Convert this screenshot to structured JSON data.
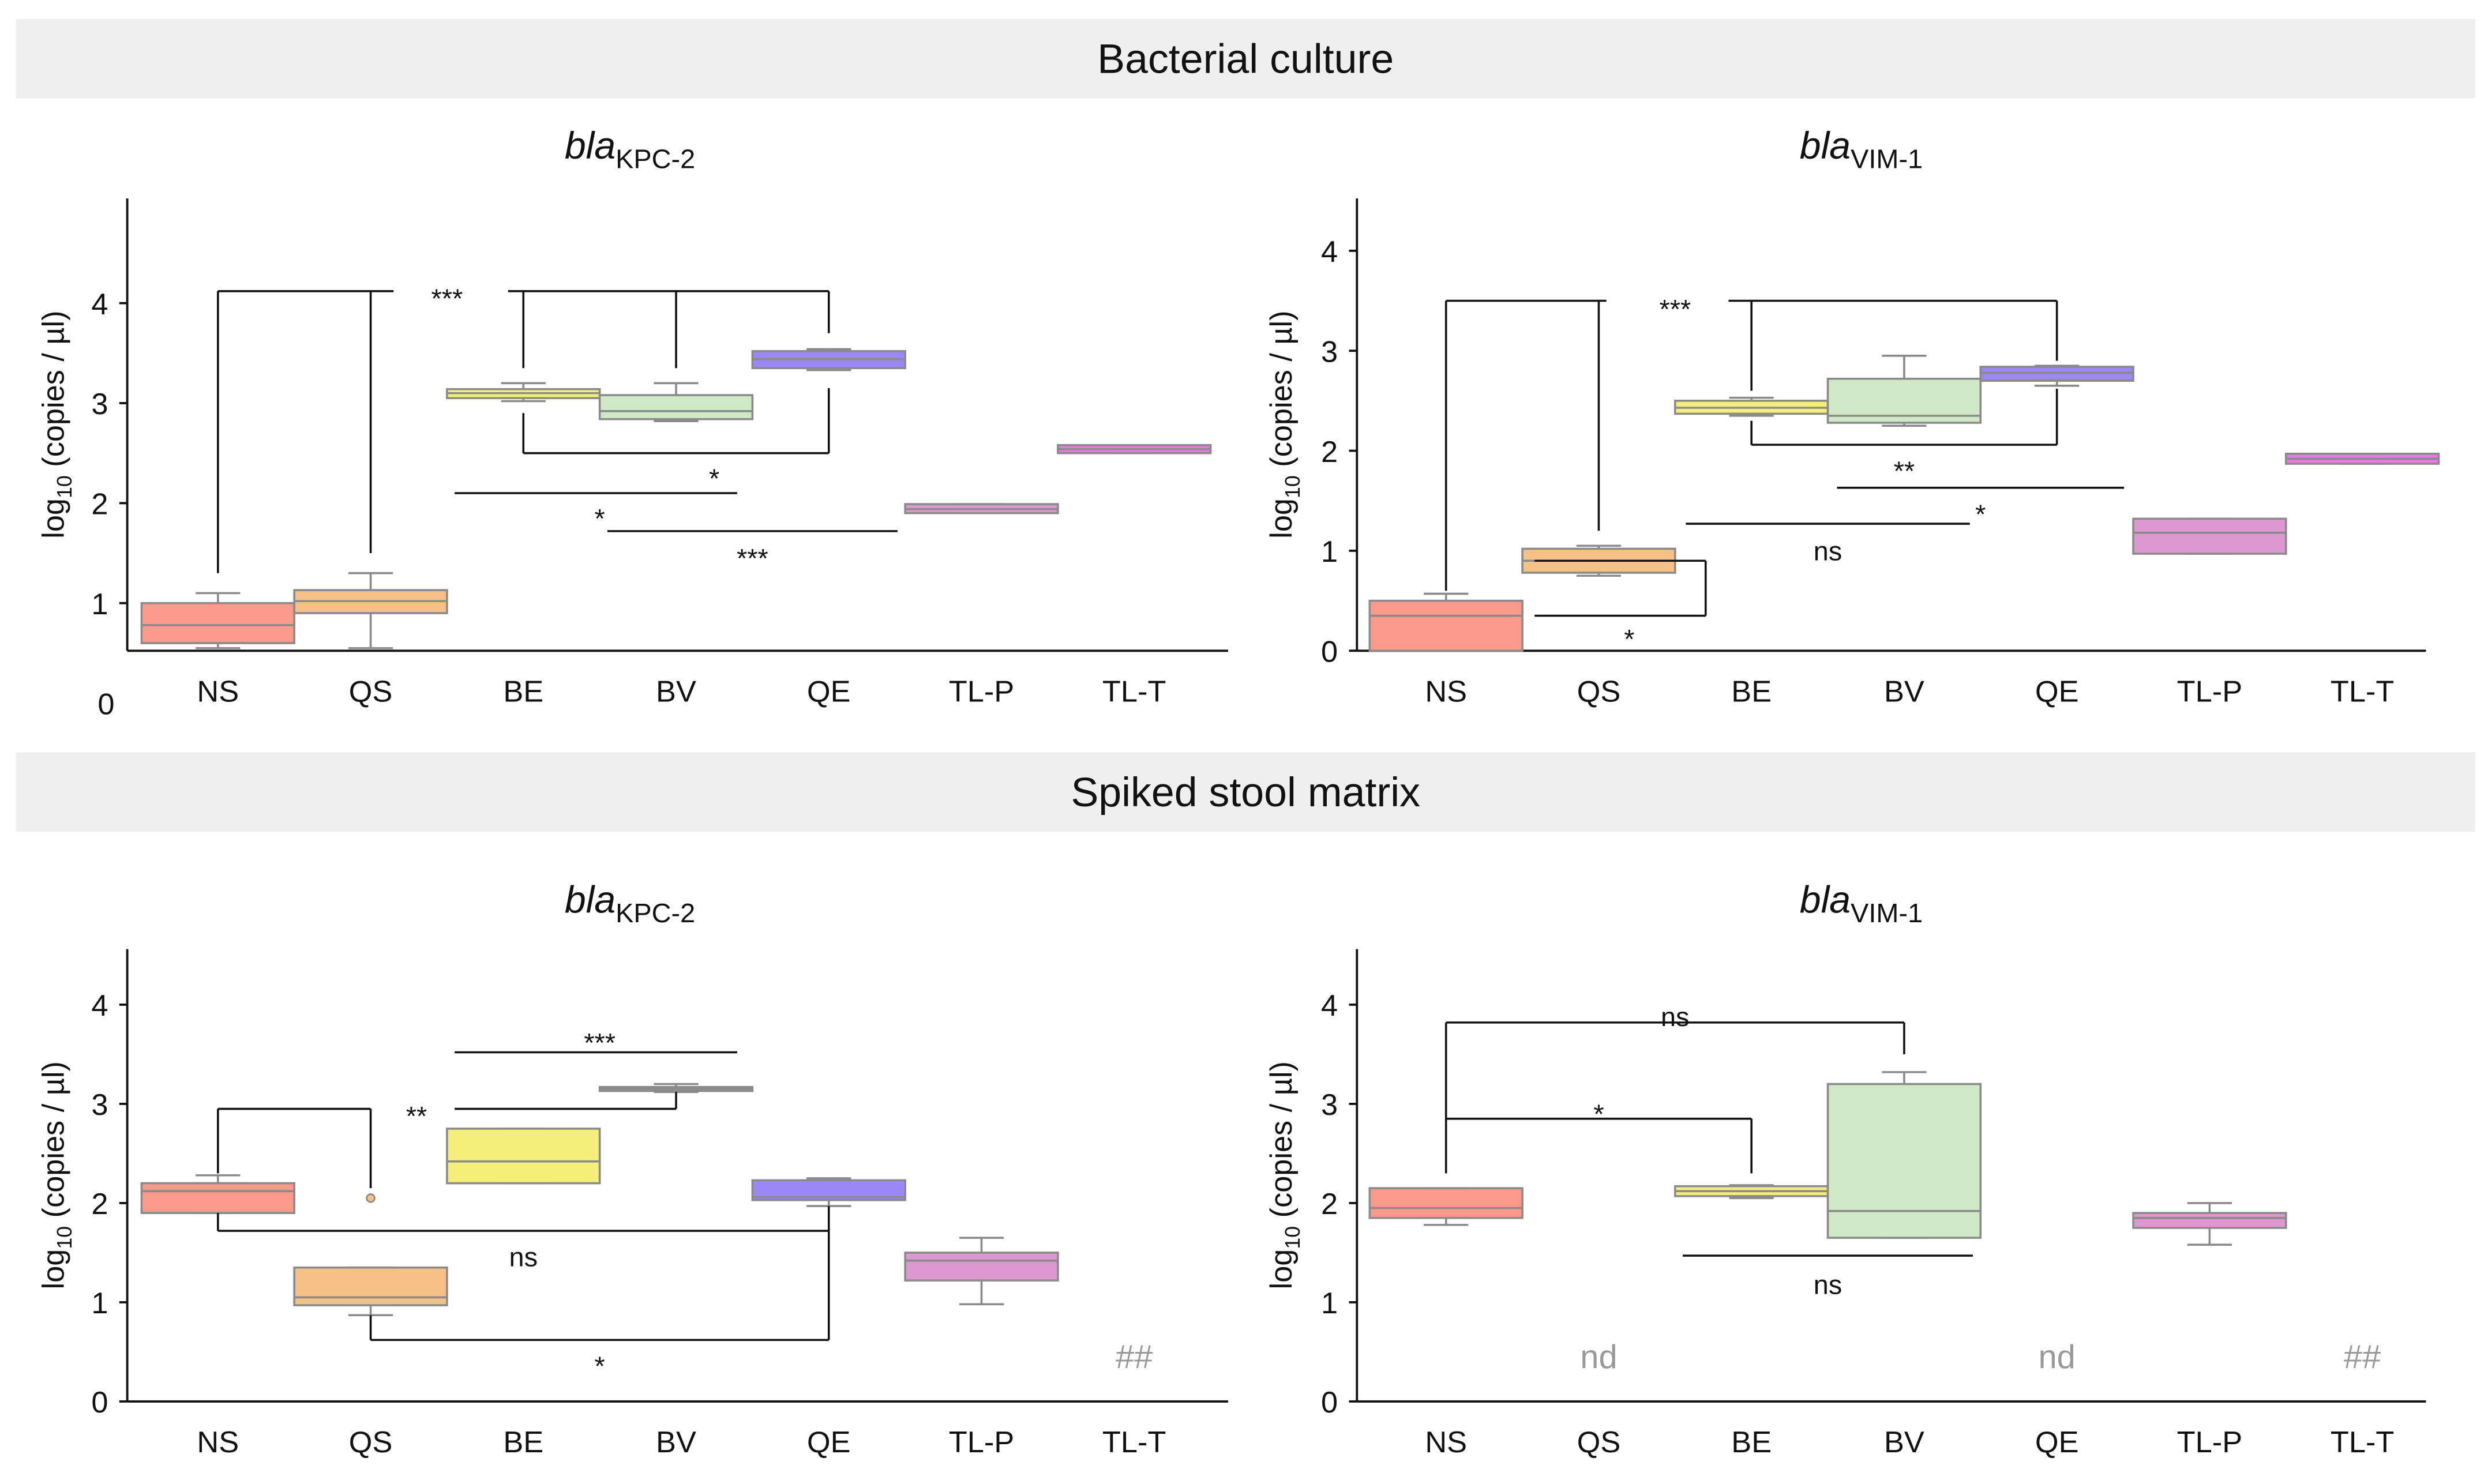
{
  "sections": [
    {
      "title": "Bacterial culture"
    },
    {
      "title": "Spiked stool matrix"
    }
  ],
  "chart_data": [
    {
      "type": "box",
      "section": "Bacterial culture",
      "title_italic": "bla",
      "title_sub": "KPC-2",
      "ylabel_main": "log",
      "ylabel_sub": "10",
      "ylabel_rest": " (copies / µl)",
      "yticks": [
        "0",
        "1",
        "2",
        "3",
        "4"
      ],
      "ylim": [
        0,
        4.5
      ],
      "categories": [
        "NS",
        "QS",
        "BE",
        "BV",
        "QE",
        "TL-P",
        "TL-T"
      ],
      "colors": [
        "#fb9a8a",
        "#f6c187",
        "#f3ef7a",
        "#cfe8c6",
        "#9b87f5",
        "#dd98d0",
        "#f075e6"
      ],
      "boxes": [
        {
          "lo": 0.55,
          "q1": 0.6,
          "med": 0.78,
          "q3": 1.0,
          "hi": 1.1
        },
        {
          "lo": 0.55,
          "q1": 0.9,
          "med": 1.02,
          "q3": 1.13,
          "hi": 1.3
        },
        {
          "lo": 3.02,
          "q1": 3.05,
          "med": 3.1,
          "q3": 3.14,
          "hi": 3.2
        },
        {
          "lo": 2.82,
          "q1": 2.84,
          "med": 2.92,
          "q3": 3.08,
          "hi": 3.2
        },
        {
          "lo": 3.33,
          "q1": 3.35,
          "med": 3.44,
          "q3": 3.52,
          "hi": 3.54
        },
        {
          "lo": 1.9,
          "q1": 1.9,
          "med": 1.94,
          "q3": 1.99,
          "hi": 1.99
        },
        {
          "lo": 2.5,
          "q1": 2.5,
          "med": 2.54,
          "q3": 2.58,
          "hi": 2.58
        }
      ],
      "annotations": [
        {
          "label": "***",
          "x": 1.5,
          "y": 4.05,
          "lines": [
            [
              0,
              4.12,
              1.15,
              4.12
            ],
            [
              1.9,
              4.12,
              4,
              4.12
            ],
            [
              0,
              4.12,
              0,
              1.3
            ],
            [
              1,
              4.12,
              1,
              1.5
            ],
            [
              2,
              4.12,
              2,
              3.35
            ],
            [
              3,
              4.12,
              3,
              3.35
            ],
            [
              4,
              4.12,
              4,
              3.7
            ]
          ]
        },
        {
          "label": "*",
          "x": 3.25,
          "y": 2.25,
          "lines": [
            [
              2,
              2.9,
              2,
              2.5
            ],
            [
              2,
              2.5,
              4,
              2.5
            ],
            [
              4,
              2.5,
              4,
              3.15
            ]
          ]
        },
        {
          "label": "*",
          "x": 2.5,
          "y": 1.85,
          "lines": [
            [
              1.55,
              2.1,
              3.4,
              2.1
            ]
          ]
        },
        {
          "label": "***",
          "x": 3.5,
          "y": 1.45,
          "lines": [
            [
              2.55,
              1.72,
              4.45,
              1.72
            ]
          ]
        }
      ],
      "marks": []
    },
    {
      "type": "box",
      "section": "Bacterial culture",
      "title_italic": "bla",
      "title_sub": "VIM-1",
      "ylabel_main": "log",
      "ylabel_sub": "10",
      "ylabel_rest": " (copies / µl)",
      "yticks": [
        "0",
        "1",
        "2",
        "3",
        "4"
      ],
      "ylim": [
        0,
        4.5
      ],
      "categories": [
        "NS",
        "QS",
        "BE",
        "BV",
        "QE",
        "TL-P",
        "TL-T"
      ],
      "colors": [
        "#fb9a8a",
        "#f6c187",
        "#f3ef7a",
        "#cfe8c6",
        "#9b87f5",
        "#dd98d0",
        "#f075e6"
      ],
      "boxes": [
        {
          "lo": 0,
          "q1": 0,
          "med": 0.35,
          "q3": 0.5,
          "hi": 0.57
        },
        {
          "lo": 0.75,
          "q1": 0.78,
          "med": 0.9,
          "q3": 1.02,
          "hi": 1.05
        },
        {
          "lo": 2.35,
          "q1": 2.37,
          "med": 2.43,
          "q3": 2.5,
          "hi": 2.53
        },
        {
          "lo": 2.25,
          "q1": 2.28,
          "med": 2.35,
          "q3": 2.72,
          "hi": 2.95
        },
        {
          "lo": 2.65,
          "q1": 2.7,
          "med": 2.78,
          "q3": 2.84,
          "hi": 2.85
        },
        {
          "lo": 0.97,
          "q1": 0.97,
          "med": 1.18,
          "q3": 1.32,
          "hi": 1.32
        },
        {
          "lo": 1.87,
          "q1": 1.87,
          "med": 1.92,
          "q3": 1.97,
          "hi": 1.97
        }
      ],
      "annotations": [
        {
          "label": "***",
          "x": 1.5,
          "y": 3.42,
          "lines": [
            [
              0,
              3.5,
              1.05,
              3.5
            ],
            [
              1.85,
              3.5,
              4,
              3.5
            ],
            [
              0,
              3.5,
              0,
              0.6
            ],
            [
              1,
              3.5,
              1,
              1.2
            ],
            [
              2,
              3.5,
              2,
              2.6
            ],
            [
              4,
              3.5,
              4,
              2.9
            ]
          ]
        },
        {
          "label": "**",
          "x": 3.0,
          "y": 1.8,
          "lines": [
            [
              2,
              2.3,
              2,
              2.06
            ],
            [
              2,
              2.06,
              4,
              2.06
            ],
            [
              4,
              2.06,
              4,
              2.62
            ]
          ]
        },
        {
          "label": "*",
          "x": 3.5,
          "y": 1.37,
          "lines": [
            [
              2.56,
              1.63,
              4.44,
              1.63
            ]
          ]
        },
        {
          "label": "ns",
          "x": 2.5,
          "y": 1.0,
          "lines": [
            [
              1.57,
              1.27,
              3.43,
              1.27
            ]
          ]
        },
        {
          "label": "*",
          "x": 1.2,
          "y": 0.12,
          "lines": [
            [
              0.58,
              0.9,
              1.7,
              0.9
            ],
            [
              1.7,
              0.9,
              1.7,
              0.35
            ],
            [
              0.58,
              0.35,
              1.7,
              0.35
            ]
          ]
        }
      ],
      "marks": []
    },
    {
      "type": "box",
      "section": "Spiked stool matrix",
      "title_italic": "bla",
      "title_sub": "KPC-2",
      "ylabel_main": "log",
      "ylabel_sub": "10",
      "ylabel_rest": " (copies / µl)",
      "yticks": [
        "0",
        "1",
        "2",
        "3",
        "4"
      ],
      "ylim": [
        0,
        4.5
      ],
      "categories": [
        "NS",
        "QS",
        "BE",
        "BV",
        "QE",
        "TL-P",
        "TL-T"
      ],
      "colors": [
        "#fb9a8a",
        "#f6c187",
        "#f3ef7a",
        "#cfe8c6",
        "#9b87f5",
        "#dd98d0",
        "#f075e6"
      ],
      "boxes": [
        {
          "lo": 1.9,
          "q1": 1.9,
          "med": 2.12,
          "q3": 2.2,
          "hi": 2.28
        },
        {
          "lo": 0.87,
          "q1": 0.97,
          "med": 1.05,
          "q3": 1.35,
          "hi": 1.35,
          "outliers": [
            2.05
          ]
        },
        {
          "lo": 2.2,
          "q1": 2.2,
          "med": 2.42,
          "q3": 2.75,
          "hi": 2.75
        },
        {
          "lo": 3.12,
          "q1": 3.13,
          "med": 3.15,
          "q3": 3.17,
          "hi": 3.2
        },
        {
          "lo": 1.97,
          "q1": 2.03,
          "med": 2.06,
          "q3": 2.23,
          "hi": 2.25
        },
        {
          "lo": 0.98,
          "q1": 1.22,
          "med": 1.42,
          "q3": 1.5,
          "hi": 1.65
        },
        null
      ],
      "annotations": [
        {
          "label": "**",
          "x": 1.3,
          "y": 2.88,
          "lines": [
            [
              0,
              2.95,
              1,
              2.95
            ],
            [
              0,
              2.95,
              0,
              2.3
            ],
            [
              1,
              2.95,
              1,
              2.15
            ],
            [
              1.55,
              2.95,
              3,
              2.95
            ],
            [
              3,
              2.95,
              3,
              3.12
            ]
          ]
        },
        {
          "label": "***",
          "x": 2.5,
          "y": 3.62,
          "lines": [
            [
              1.55,
              3.52,
              3.4,
              3.52
            ]
          ]
        },
        {
          "label": "ns",
          "x": 2.0,
          "y": 1.46,
          "lines": [
            [
              0,
              1.9,
              0,
              1.72
            ],
            [
              0,
              1.72,
              4,
              1.72
            ],
            [
              4,
              1.72,
              4,
              1.97
            ]
          ]
        },
        {
          "label": "*",
          "x": 2.5,
          "y": 0.36,
          "lines": [
            [
              1,
              0.87,
              1,
              0.62
            ],
            [
              1,
              0.62,
              4,
              0.62
            ],
            [
              4,
              0.62,
              4,
              1.72
            ]
          ]
        }
      ],
      "marks": [
        {
          "label": "##",
          "x": 6,
          "y": 0.45
        }
      ]
    },
    {
      "type": "box",
      "section": "Spiked stool matrix",
      "title_italic": "bla",
      "title_sub": "VIM-1",
      "ylabel_main": "log",
      "ylabel_sub": "10",
      "ylabel_rest": " (copies / µl)",
      "yticks": [
        "0",
        "1",
        "2",
        "3",
        "4"
      ],
      "ylim": [
        0,
        4.5
      ],
      "categories": [
        "NS",
        "QS",
        "BE",
        "BV",
        "QE",
        "TL-P",
        "TL-T"
      ],
      "colors": [
        "#fb9a8a",
        "#f6c187",
        "#f3ef7a",
        "#cfe8c6",
        "#9b87f5",
        "#dd98d0",
        "#f075e6"
      ],
      "boxes": [
        {
          "lo": 1.78,
          "q1": 1.85,
          "med": 1.95,
          "q3": 2.15,
          "hi": 2.15
        },
        null,
        {
          "lo": 2.05,
          "q1": 2.07,
          "med": 2.12,
          "q3": 2.17,
          "hi": 2.18
        },
        {
          "lo": 1.65,
          "q1": 1.65,
          "med": 1.92,
          "q3": 3.2,
          "hi": 3.32
        },
        null,
        {
          "lo": 1.58,
          "q1": 1.75,
          "med": 1.85,
          "q3": 1.9,
          "hi": 2.0
        },
        null
      ],
      "annotations": [
        {
          "label": "ns",
          "x": 1.5,
          "y": 3.88,
          "lines": [
            [
              0,
              2.3,
              0,
              3.82
            ],
            [
              0,
              3.82,
              3,
              3.82
            ],
            [
              3,
              3.82,
              3,
              3.5
            ]
          ]
        },
        {
          "label": "*",
          "x": 1.0,
          "y": 2.9,
          "lines": [
            [
              0,
              2.85,
              2,
              2.85
            ],
            [
              2,
              2.85,
              2,
              2.3
            ]
          ]
        },
        {
          "label": "ns",
          "x": 2.5,
          "y": 1.18,
          "lines": [
            [
              1.55,
              1.47,
              3.45,
              1.47
            ]
          ]
        }
      ],
      "marks": [
        {
          "label": "nd",
          "x": 1,
          "y": 0.45
        },
        {
          "label": "nd",
          "x": 4,
          "y": 0.45
        },
        {
          "label": "##",
          "x": 6,
          "y": 0.45
        }
      ]
    }
  ]
}
